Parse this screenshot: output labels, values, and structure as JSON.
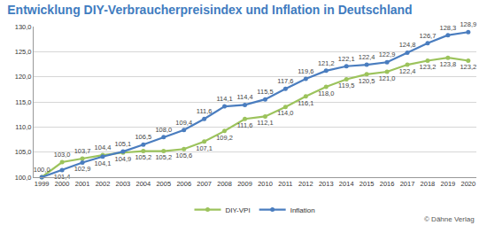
{
  "chart_data": {
    "type": "line",
    "title": "Entwicklung DIY-Verbraucherpreisindex und Inflation in Deutschland",
    "categories": [
      "1999",
      "2000",
      "2001",
      "2002",
      "2003",
      "2004",
      "2005",
      "2006",
      "2007",
      "2008",
      "2009",
      "2010",
      "2011",
      "2012",
      "2013",
      "2014",
      "2015",
      "2016",
      "2017",
      "2018",
      "2019",
      "2020"
    ],
    "series": [
      {
        "name": "DIY-VPI",
        "color": "#9cc35c",
        "marker": "circle",
        "values": [
          100.0,
          103.0,
          103.7,
          104.4,
          104.9,
          105.2,
          105.2,
          105.6,
          107.1,
          109.2,
          111.6,
          112.1,
          114.0,
          116.1,
          118.0,
          119.5,
          120.5,
          121.0,
          122.4,
          123.2,
          123.8,
          123.2
        ],
        "value_labels": [
          null,
          "103,0",
          "103,7",
          "104,4",
          "104,9",
          "105,2",
          "105,2",
          "105,6",
          "107,1",
          "109,2",
          "111,6",
          "112,1",
          "114,0",
          "116,1",
          "118,0",
          "119,5",
          "120,5",
          "121,0",
          "122,4",
          "123,2",
          "123,8",
          "123,2"
        ]
      },
      {
        "name": "Inflation",
        "color": "#4a7dbf",
        "marker": "circle",
        "values": [
          100.0,
          101.4,
          102.9,
          104.1,
          105.1,
          106.5,
          108.0,
          109.4,
          111.6,
          114.1,
          114.4,
          115.5,
          117.6,
          119.6,
          121.2,
          122.1,
          122.4,
          122.9,
          124.8,
          126.7,
          128.3,
          128.9
        ],
        "value_labels": [
          "100,0",
          "101,4",
          "102,9",
          "104,1",
          "105,1",
          "106,5",
          "108,0",
          "109,4",
          "111,6",
          "114,1",
          "114,4",
          "115,5",
          "117,6",
          "119,6",
          "121,2",
          "122,1",
          "122,4",
          "122,9",
          "124,8",
          "126,7",
          "128,3",
          "128,9"
        ]
      }
    ],
    "ylim": [
      100,
      130
    ],
    "yticks": [
      {
        "value": 100,
        "label": "100,0"
      },
      {
        "value": 105,
        "label": "105,0"
      },
      {
        "value": 110,
        "label": "110,0"
      },
      {
        "value": 115,
        "label": "115,0"
      },
      {
        "value": 120,
        "label": "120,0"
      },
      {
        "value": 125,
        "label": "125,0"
      },
      {
        "value": 130,
        "label": "130,0"
      }
    ],
    "grid": true,
    "legend": "bottom",
    "data_labels": true,
    "annotations": [
      "© Dähne Verlag"
    ]
  }
}
